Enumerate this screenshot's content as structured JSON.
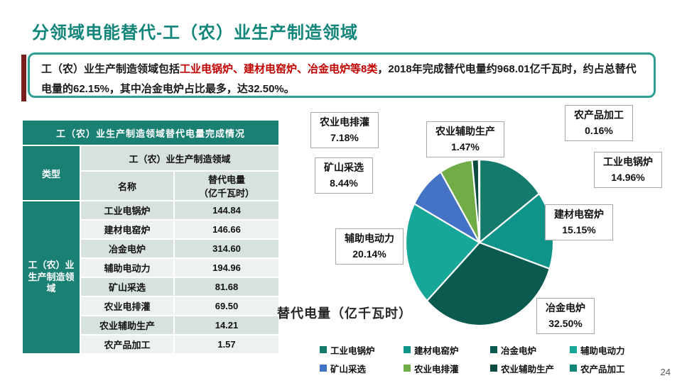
{
  "slide": {
    "title": "分领域电能替代-工（农）业生产制造领域",
    "page_number": "24"
  },
  "infobox": {
    "text_intro": "工（农）业生产制造领域包括",
    "text_highlight": "工业电锅炉、建材电窑炉、冶金电炉等8类",
    "text_rest": "，2018年完成替代电量约968.01亿千瓦时，约占总替代电量的62.15%，其中冶金电炉占比最多，达32.50%。",
    "highlight_color": "#c00000",
    "border_color": "#2e9e92",
    "accent_bar_color": "#7a1d1d"
  },
  "table": {
    "title": "工（农）业生产制造领域替代电量完成情况",
    "type_header": "类型",
    "group_header": "工（农）业生产制造领域",
    "col_name": "名称",
    "col_value_line1": "替代电量",
    "col_value_line2": "（亿千瓦时）",
    "row_group": "工（农）业生产制造领域",
    "rows": [
      {
        "name": "工业电锅炉",
        "value": "144.84"
      },
      {
        "name": "建材电窑炉",
        "value": "146.66"
      },
      {
        "name": "冶金电炉",
        "value": "314.60"
      },
      {
        "name": "辅助电动力",
        "value": "194.96"
      },
      {
        "name": "矿山采选",
        "value": "81.68"
      },
      {
        "name": "农业电排灌",
        "value": "69.50"
      },
      {
        "name": "农业辅助生产",
        "value": "14.21"
      },
      {
        "name": "农产品加工",
        "value": "1.57"
      }
    ]
  },
  "chart_data": {
    "type": "pie",
    "title": "替代电量（亿千瓦时）",
    "categories": [
      "工业电锅炉",
      "建材电窑炉",
      "冶金电炉",
      "辅助电动力",
      "矿山采选",
      "农业电排灌",
      "农业辅助生产",
      "农产品加工"
    ],
    "values": [
      14.96,
      15.15,
      32.5,
      20.14,
      8.44,
      7.18,
      1.47,
      0.16
    ],
    "values_absolute_yi_kwh": [
      144.84,
      146.66,
      314.6,
      194.96,
      81.68,
      69.5,
      14.21,
      1.57
    ],
    "unit": "%",
    "total_note": "2018年完成替代电量约968.01亿千瓦时",
    "start_angle_deg": 0,
    "direction": "clockwise",
    "legend_position": "bottom",
    "colors": [
      "#147a6c",
      "#0e9488",
      "#0a5a50",
      "#17a799",
      "#4472c4",
      "#70ad47",
      "#0b4b42",
      "#128779"
    ],
    "callouts": [
      {
        "name": "工业电锅炉",
        "pct": "14.96%"
      },
      {
        "name": "建材电窑炉",
        "pct": "15.15%"
      },
      {
        "name": "冶金电炉",
        "pct": "32.50%"
      },
      {
        "name": "辅助电动力",
        "pct": "20.14%"
      },
      {
        "name": "矿山采选",
        "pct": "8.44%"
      },
      {
        "name": "农业电排灌",
        "pct": "7.18%"
      },
      {
        "name": "农业辅助生产",
        "pct": "1.47%"
      },
      {
        "name": "农产品加工",
        "pct": "0.16%"
      }
    ]
  }
}
